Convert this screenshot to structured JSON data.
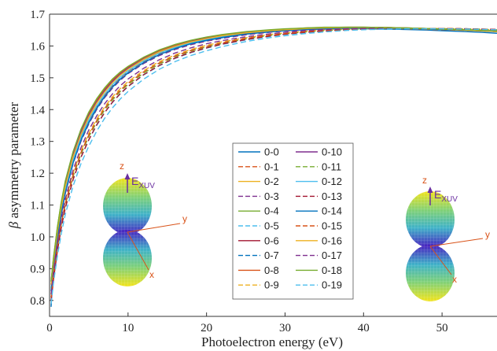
{
  "chart_data": {
    "type": "line",
    "xlabel": "Photoelectron energy (eV)",
    "ylabel_symbol": "β",
    "ylabel_text": "asymmetry parameter",
    "xlim": [
      0,
      57
    ],
    "ylim": [
      0.75,
      1.7
    ],
    "xticks": [
      0,
      10,
      20,
      30,
      40,
      50
    ],
    "yticks": [
      0.8,
      0.9,
      1.0,
      1.1,
      1.2,
      1.3,
      1.4,
      1.5,
      1.6,
      1.7
    ],
    "ytick_labels": [
      "0.8",
      "0.9",
      "1.0",
      "1.1",
      "1.2",
      "1.3",
      "1.4",
      "1.5",
      "1.6",
      "1.7"
    ],
    "x": [
      0.2,
      0.5,
      1,
      1.5,
      2,
      3,
      4,
      5,
      6,
      7,
      8,
      9,
      10,
      12,
      14,
      16,
      18,
      20,
      22,
      25,
      28,
      30,
      33,
      35,
      38,
      40,
      43,
      45,
      48,
      50,
      53,
      55,
      57
    ],
    "legend": {
      "position": "center",
      "columns": 2
    },
    "series": [
      {
        "name": "0-0",
        "color": "#0072BD",
        "dash": "solid",
        "values": [
          0.78,
          0.92,
          1.02,
          1.1,
          1.16,
          1.26,
          1.33,
          1.385,
          1.425,
          1.46,
          1.49,
          1.512,
          1.53,
          1.56,
          1.583,
          1.6,
          1.613,
          1.623,
          1.631,
          1.64,
          1.646,
          1.649,
          1.652,
          1.653,
          1.654,
          1.654,
          1.653,
          1.652,
          1.65,
          1.648,
          1.645,
          1.643,
          1.64
        ]
      },
      {
        "name": "0-1",
        "color": "#D95319",
        "dash": "dashed",
        "values": [
          0.82,
          0.9,
          1.0,
          1.08,
          1.145,
          1.24,
          1.31,
          1.365,
          1.41,
          1.445,
          1.475,
          1.5,
          1.52,
          1.551,
          1.576,
          1.594,
          1.609,
          1.619,
          1.628,
          1.638,
          1.645,
          1.648,
          1.652,
          1.654,
          1.655,
          1.655,
          1.655,
          1.654,
          1.652,
          1.651,
          1.649,
          1.647,
          1.645
        ]
      },
      {
        "name": "0-2",
        "color": "#EDB120",
        "dash": "solid",
        "values": [
          0.84,
          0.91,
          1.01,
          1.09,
          1.155,
          1.25,
          1.32,
          1.375,
          1.42,
          1.455,
          1.485,
          1.508,
          1.527,
          1.557,
          1.581,
          1.598,
          1.612,
          1.622,
          1.63,
          1.64,
          1.647,
          1.65,
          1.654,
          1.656,
          1.657,
          1.657,
          1.656,
          1.655,
          1.653,
          1.652,
          1.649,
          1.647,
          1.645
        ]
      },
      {
        "name": "0-3",
        "color": "#7E2F8E",
        "dash": "dashed",
        "values": [
          0.81,
          0.89,
          0.99,
          1.07,
          1.135,
          1.23,
          1.3,
          1.355,
          1.4,
          1.437,
          1.467,
          1.492,
          1.513,
          1.545,
          1.57,
          1.589,
          1.604,
          1.615,
          1.624,
          1.635,
          1.643,
          1.647,
          1.651,
          1.653,
          1.655,
          1.656,
          1.656,
          1.655,
          1.654,
          1.653,
          1.651,
          1.649,
          1.647
        ]
      },
      {
        "name": "0-4",
        "color": "#77AC30",
        "dash": "solid",
        "values": [
          0.86,
          0.93,
          1.03,
          1.11,
          1.17,
          1.265,
          1.335,
          1.39,
          1.43,
          1.465,
          1.494,
          1.516,
          1.534,
          1.563,
          1.586,
          1.603,
          1.616,
          1.626,
          1.634,
          1.643,
          1.649,
          1.652,
          1.656,
          1.658,
          1.659,
          1.659,
          1.658,
          1.657,
          1.655,
          1.654,
          1.651,
          1.649,
          1.647
        ]
      },
      {
        "name": "0-5",
        "color": "#4DBEEE",
        "dash": "dashed",
        "values": [
          0.8,
          0.87,
          0.96,
          1.03,
          1.09,
          1.18,
          1.25,
          1.305,
          1.35,
          1.39,
          1.422,
          1.449,
          1.472,
          1.509,
          1.538,
          1.561,
          1.579,
          1.593,
          1.605,
          1.619,
          1.63,
          1.636,
          1.643,
          1.647,
          1.651,
          1.653,
          1.655,
          1.655,
          1.655,
          1.655,
          1.654,
          1.653,
          1.652
        ]
      },
      {
        "name": "0-6",
        "color": "#A2142F",
        "dash": "solid",
        "values": [
          0.85,
          0.92,
          1.02,
          1.1,
          1.165,
          1.26,
          1.33,
          1.383,
          1.425,
          1.46,
          1.489,
          1.512,
          1.531,
          1.561,
          1.584,
          1.601,
          1.615,
          1.625,
          1.633,
          1.643,
          1.649,
          1.652,
          1.656,
          1.657,
          1.658,
          1.658,
          1.657,
          1.656,
          1.654,
          1.652,
          1.65,
          1.648,
          1.646
        ]
      },
      {
        "name": "0-7",
        "color": "#0072BD",
        "dash": "dashed",
        "values": [
          0.83,
          0.9,
          1.0,
          1.075,
          1.14,
          1.235,
          1.305,
          1.36,
          1.405,
          1.441,
          1.471,
          1.496,
          1.516,
          1.548,
          1.573,
          1.592,
          1.607,
          1.617,
          1.626,
          1.637,
          1.644,
          1.648,
          1.652,
          1.654,
          1.656,
          1.656,
          1.656,
          1.655,
          1.654,
          1.653,
          1.651,
          1.649,
          1.647
        ]
      },
      {
        "name": "0-8",
        "color": "#D95319",
        "dash": "solid",
        "values": [
          0.86,
          0.93,
          1.025,
          1.105,
          1.17,
          1.262,
          1.332,
          1.386,
          1.428,
          1.462,
          1.491,
          1.514,
          1.533,
          1.562,
          1.585,
          1.602,
          1.616,
          1.626,
          1.634,
          1.643,
          1.65,
          1.653,
          1.657,
          1.658,
          1.659,
          1.659,
          1.658,
          1.657,
          1.655,
          1.654,
          1.651,
          1.649,
          1.647
        ]
      },
      {
        "name": "0-9",
        "color": "#EDB120",
        "dash": "dashed",
        "values": [
          0.82,
          0.885,
          0.975,
          1.05,
          1.11,
          1.2,
          1.27,
          1.325,
          1.37,
          1.408,
          1.44,
          1.466,
          1.488,
          1.523,
          1.551,
          1.572,
          1.589,
          1.602,
          1.613,
          1.626,
          1.636,
          1.641,
          1.647,
          1.65,
          1.653,
          1.655,
          1.656,
          1.656,
          1.655,
          1.655,
          1.653,
          1.652,
          1.65
        ]
      },
      {
        "name": "0-10",
        "color": "#7E2F8E",
        "dash": "solid",
        "values": [
          0.85,
          0.925,
          1.02,
          1.1,
          1.165,
          1.258,
          1.328,
          1.382,
          1.424,
          1.459,
          1.488,
          1.511,
          1.53,
          1.56,
          1.583,
          1.6,
          1.614,
          1.624,
          1.632,
          1.642,
          1.648,
          1.652,
          1.656,
          1.657,
          1.658,
          1.658,
          1.657,
          1.656,
          1.654,
          1.653,
          1.65,
          1.648,
          1.646
        ]
      },
      {
        "name": "0-11",
        "color": "#77AC30",
        "dash": "dashed",
        "values": [
          0.81,
          0.875,
          0.965,
          1.04,
          1.1,
          1.19,
          1.26,
          1.315,
          1.36,
          1.398,
          1.43,
          1.457,
          1.479,
          1.515,
          1.544,
          1.566,
          1.584,
          1.597,
          1.608,
          1.622,
          1.633,
          1.638,
          1.645,
          1.648,
          1.652,
          1.654,
          1.655,
          1.655,
          1.655,
          1.655,
          1.654,
          1.653,
          1.651
        ]
      },
      {
        "name": "0-12",
        "color": "#4DBEEE",
        "dash": "solid",
        "values": [
          0.84,
          0.91,
          1.005,
          1.085,
          1.148,
          1.242,
          1.313,
          1.368,
          1.412,
          1.448,
          1.478,
          1.502,
          1.522,
          1.553,
          1.578,
          1.596,
          1.61,
          1.621,
          1.63,
          1.64,
          1.647,
          1.651,
          1.655,
          1.656,
          1.657,
          1.657,
          1.657,
          1.656,
          1.654,
          1.653,
          1.651,
          1.649,
          1.647
        ]
      },
      {
        "name": "0-13",
        "color": "#A2142F",
        "dash": "dashed",
        "values": [
          0.8,
          0.865,
          0.955,
          1.03,
          1.09,
          1.18,
          1.25,
          1.305,
          1.352,
          1.39,
          1.423,
          1.45,
          1.473,
          1.51,
          1.539,
          1.562,
          1.58,
          1.594,
          1.606,
          1.62,
          1.631,
          1.637,
          1.644,
          1.647,
          1.651,
          1.653,
          1.655,
          1.655,
          1.655,
          1.655,
          1.654,
          1.653,
          1.652
        ]
      },
      {
        "name": "0-14",
        "color": "#0072BD",
        "dash": "solid",
        "values": [
          0.83,
          0.9,
          0.995,
          1.075,
          1.138,
          1.232,
          1.303,
          1.358,
          1.403,
          1.44,
          1.47,
          1.495,
          1.515,
          1.548,
          1.573,
          1.592,
          1.607,
          1.618,
          1.627,
          1.638,
          1.645,
          1.649,
          1.653,
          1.655,
          1.656,
          1.656,
          1.656,
          1.655,
          1.653,
          1.652,
          1.65,
          1.648,
          1.646
        ]
      },
      {
        "name": "0-15",
        "color": "#D95319",
        "dash": "dashed",
        "values": [
          0.81,
          0.88,
          0.97,
          1.045,
          1.105,
          1.195,
          1.265,
          1.32,
          1.365,
          1.403,
          1.435,
          1.461,
          1.483,
          1.519,
          1.547,
          1.569,
          1.586,
          1.599,
          1.61,
          1.624,
          1.634,
          1.639,
          1.646,
          1.649,
          1.652,
          1.654,
          1.655,
          1.655,
          1.655,
          1.655,
          1.654,
          1.652,
          1.651
        ]
      },
      {
        "name": "0-16",
        "color": "#EDB120",
        "dash": "solid",
        "values": [
          0.85,
          0.92,
          1.015,
          1.095,
          1.158,
          1.252,
          1.322,
          1.377,
          1.42,
          1.455,
          1.484,
          1.508,
          1.527,
          1.558,
          1.582,
          1.599,
          1.613,
          1.623,
          1.632,
          1.641,
          1.648,
          1.651,
          1.655,
          1.657,
          1.658,
          1.658,
          1.657,
          1.656,
          1.654,
          1.653,
          1.65,
          1.648,
          1.646
        ]
      },
      {
        "name": "0-17",
        "color": "#7E2F8E",
        "dash": "dashed",
        "values": [
          0.82,
          0.89,
          0.98,
          1.055,
          1.118,
          1.21,
          1.28,
          1.336,
          1.38,
          1.418,
          1.449,
          1.475,
          1.496,
          1.53,
          1.557,
          1.578,
          1.594,
          1.607,
          1.617,
          1.629,
          1.638,
          1.643,
          1.649,
          1.651,
          1.654,
          1.655,
          1.656,
          1.656,
          1.655,
          1.654,
          1.653,
          1.651,
          1.649
        ]
      },
      {
        "name": "0-18",
        "color": "#77AC30",
        "dash": "solid",
        "values": [
          0.86,
          0.935,
          1.03,
          1.11,
          1.175,
          1.268,
          1.338,
          1.392,
          1.434,
          1.468,
          1.496,
          1.518,
          1.536,
          1.565,
          1.588,
          1.605,
          1.618,
          1.628,
          1.636,
          1.645,
          1.651,
          1.654,
          1.657,
          1.659,
          1.659,
          1.659,
          1.658,
          1.657,
          1.655,
          1.653,
          1.651,
          1.649,
          1.647
        ]
      },
      {
        "name": "0-19",
        "color": "#4DBEEE",
        "dash": "dashed",
        "values": [
          0.79,
          0.855,
          0.94,
          1.01,
          1.07,
          1.16,
          1.23,
          1.285,
          1.332,
          1.372,
          1.405,
          1.433,
          1.457,
          1.496,
          1.527,
          1.551,
          1.57,
          1.585,
          1.598,
          1.614,
          1.626,
          1.632,
          1.64,
          1.644,
          1.649,
          1.651,
          1.653,
          1.654,
          1.654,
          1.654,
          1.653,
          1.652,
          1.651
        ]
      }
    ]
  },
  "insets": {
    "axis_z": "z",
    "axis_y": "y",
    "axis_x": "x",
    "field_label": "E",
    "field_sub": "XUV"
  }
}
